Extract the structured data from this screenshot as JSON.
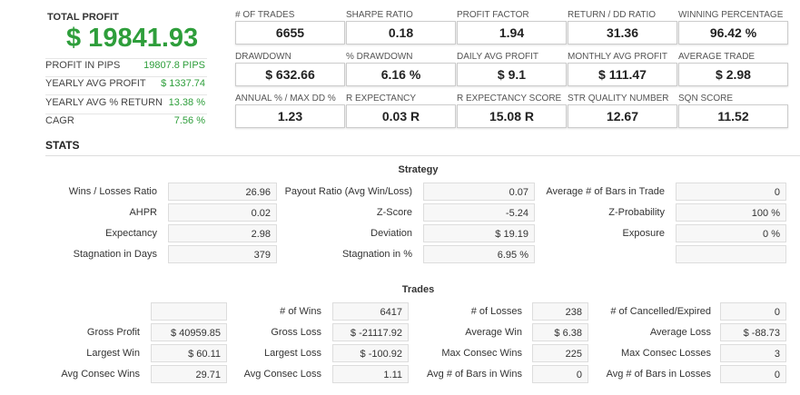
{
  "summary": {
    "total_profit_label": "TOTAL PROFIT",
    "total_profit_value": "$ 19841.93",
    "rows": [
      {
        "label": "PROFIT IN PIPS",
        "value": "19807.8 PIPS"
      },
      {
        "label": "YEARLY AVG PROFIT",
        "value": "$ 1337.74"
      },
      {
        "label": "YEARLY AVG % RETURN",
        "value": "13.38 %"
      },
      {
        "label": "CAGR",
        "value": "7.56 %"
      }
    ]
  },
  "metrics": [
    {
      "label": "# OF TRADES",
      "value": "6655"
    },
    {
      "label": "SHARPE RATIO",
      "value": "0.18"
    },
    {
      "label": "PROFIT FACTOR",
      "value": "1.94"
    },
    {
      "label": "RETURN / DD RATIO",
      "value": "31.36"
    },
    {
      "label": "WINNING PERCENTAGE",
      "value": "96.42 %"
    },
    {
      "label": "DRAWDOWN",
      "value": "$ 632.66"
    },
    {
      "label": "% DRAWDOWN",
      "value": "6.16 %"
    },
    {
      "label": "DAILY AVG PROFIT",
      "value": "$ 9.1"
    },
    {
      "label": "MONTHLY AVG PROFIT",
      "value": "$ 111.47"
    },
    {
      "label": "AVERAGE TRADE",
      "value": "$ 2.98"
    },
    {
      "label": "ANNUAL % / MAX DD %",
      "value": "1.23"
    },
    {
      "label": "R EXPECTANCY",
      "value": "0.03 R"
    },
    {
      "label": "R EXPECTANCY SCORE",
      "value": "15.08 R"
    },
    {
      "label": "STR QUALITY NUMBER",
      "value": "12.67"
    },
    {
      "label": "SQN SCORE",
      "value": "11.52"
    }
  ],
  "stats_heading": "STATS",
  "strategy": {
    "title": "Strategy",
    "rows": [
      [
        {
          "label": "Wins / Losses Ratio",
          "value": "26.96"
        },
        {
          "label": "Payout Ratio (Avg Win/Loss)",
          "value": "0.07"
        },
        {
          "label": "Average # of Bars in Trade",
          "value": "0"
        }
      ],
      [
        {
          "label": "AHPR",
          "value": "0.02"
        },
        {
          "label": "Z-Score",
          "value": "-5.24"
        },
        {
          "label": "Z-Probability",
          "value": "100 %"
        }
      ],
      [
        {
          "label": "Expectancy",
          "value": "2.98"
        },
        {
          "label": "Deviation",
          "value": "$ 19.19"
        },
        {
          "label": "Exposure",
          "value": "0 %"
        }
      ],
      [
        {
          "label": "Stagnation in Days",
          "value": "379"
        },
        {
          "label": "Stagnation in %",
          "value": "6.95 %"
        },
        {
          "label": "",
          "value": ""
        }
      ]
    ]
  },
  "trades": {
    "title": "Trades",
    "rows": [
      [
        {
          "label": "",
          "value": ""
        },
        {
          "label": "# of Wins",
          "value": "6417"
        },
        {
          "label": "# of Losses",
          "value": "238"
        },
        {
          "label": "# of Cancelled/Expired",
          "value": "0"
        }
      ],
      [
        {
          "label": "Gross Profit",
          "value": "$ 40959.85"
        },
        {
          "label": "Gross Loss",
          "value": "$ -21117.92"
        },
        {
          "label": "Average Win",
          "value": "$ 6.38"
        },
        {
          "label": "Average Loss",
          "value": "$ -88.73"
        }
      ],
      [
        {
          "label": "Largest Win",
          "value": "$ 60.11"
        },
        {
          "label": "Largest Loss",
          "value": "$ -100.92"
        },
        {
          "label": "Max Consec Wins",
          "value": "225"
        },
        {
          "label": "Max Consec Losses",
          "value": "3"
        }
      ],
      [
        {
          "label": "Avg Consec Wins",
          "value": "29.71"
        },
        {
          "label": "Avg Consec Loss",
          "value": "1.11"
        },
        {
          "label": "Avg # of Bars in Wins",
          "value": "0"
        },
        {
          "label": "Avg # of Bars in Losses",
          "value": "0"
        }
      ]
    ]
  },
  "colors": {
    "profit_green": "#2e9e3b"
  }
}
